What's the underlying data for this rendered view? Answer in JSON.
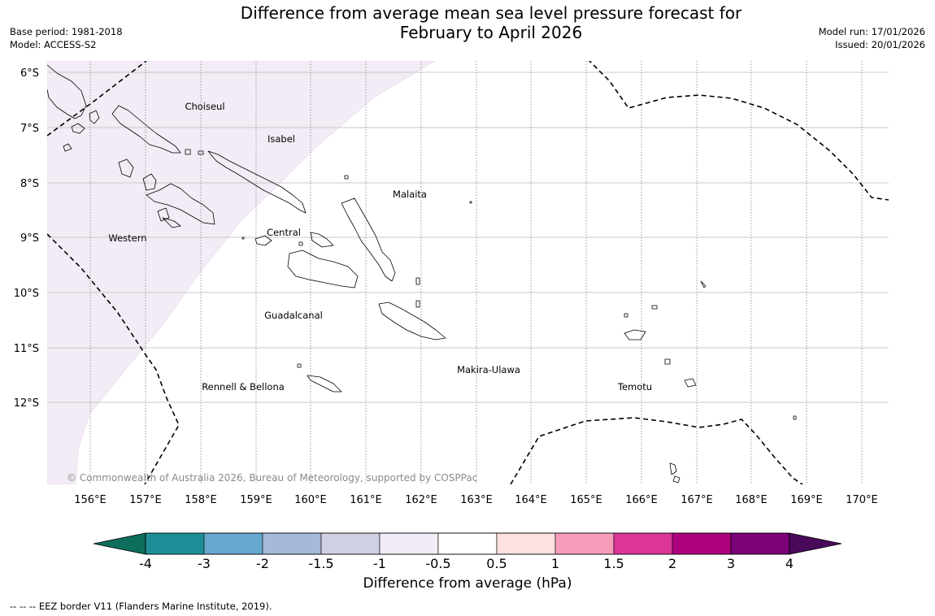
{
  "title": {
    "line1": "Difference from average mean sea level pressure forecast for",
    "line2": "February to April 2026"
  },
  "meta_left": {
    "base_period": "Base period: 1981-2018",
    "model": "Model: ACCESS-S2"
  },
  "meta_right": {
    "model_run": "Model run: 17/01/2026",
    "issued": "Issued: 20/01/2026"
  },
  "map": {
    "lat_labels": [
      "6°S",
      "7°S",
      "8°S",
      "9°S",
      "10°S",
      "11°S",
      "12°S"
    ],
    "lon_labels": [
      "156°E",
      "157°E",
      "158°E",
      "159°E",
      "160°E",
      "161°E",
      "162°E",
      "163°E",
      "164°E",
      "165°E",
      "166°E",
      "167°E",
      "168°E",
      "169°E",
      "170°E"
    ],
    "regions": [
      {
        "name": "Choiseul"
      },
      {
        "name": "Isabel"
      },
      {
        "name": "Malaita"
      },
      {
        "name": "Central"
      },
      {
        "name": "Western"
      },
      {
        "name": "Guadalcanal"
      },
      {
        "name": "Makira-Ulawa"
      },
      {
        "name": "Rennell & Bellona"
      },
      {
        "name": "Temotu"
      }
    ],
    "copyright": "© Commonwealth of Australia 2026, Bureau of Meteorology, supported by COSPPac",
    "shaded_category_color": "#f3ebf5",
    "border_style": "dashed"
  },
  "legend": {
    "title": "Difference from average (hPa)",
    "ticks": [
      "-4",
      "-3",
      "-2",
      "-1.5",
      "-1",
      "-0.5",
      "0.5",
      "1",
      "1.5",
      "2",
      "3",
      "4"
    ],
    "low_extend_color": "#0e6e5e",
    "high_extend_color": "#4a0a5a",
    "colors": [
      "#1f8f97",
      "#66a8cf",
      "#a5b9da",
      "#cfd0e3",
      "#f3ebf5",
      "#ffffff",
      "#fde0e0",
      "#f79cba",
      "#dd3497",
      "#ae017e",
      "#7a0177"
    ]
  },
  "footnote": "--  --  -- EEZ border V11 (Flanders Marine Institute, 2019)."
}
